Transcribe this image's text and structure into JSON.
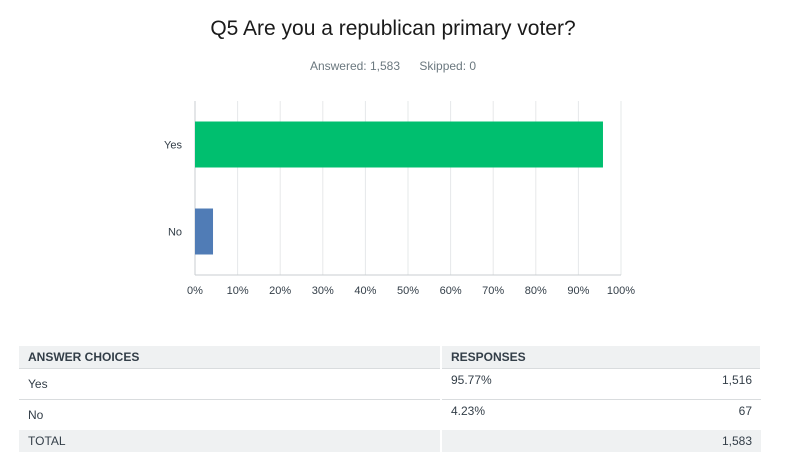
{
  "header": {
    "title": "Q5 Are you a republican primary voter?",
    "answered": "Answered: 1,583",
    "skipped": "Skipped: 0"
  },
  "chart_data": {
    "type": "bar",
    "orientation": "horizontal",
    "categories": [
      "Yes",
      "No"
    ],
    "values": [
      95.77,
      4.23
    ],
    "colors": [
      "#00bf6f",
      "#507cb6"
    ],
    "xlim": [
      0,
      100
    ],
    "xticks": [
      "0%",
      "10%",
      "20%",
      "30%",
      "40%",
      "50%",
      "60%",
      "70%",
      "80%",
      "90%",
      "100%"
    ],
    "grid": true
  },
  "table": {
    "headers": [
      "ANSWER CHOICES",
      "RESPONSES"
    ],
    "rows": [
      {
        "label": "Yes",
        "percent": "95.77%",
        "count": "1,516"
      },
      {
        "label": "No",
        "percent": "4.23%",
        "count": "67"
      }
    ],
    "total": {
      "label": "TOTAL",
      "count": "1,583"
    }
  }
}
